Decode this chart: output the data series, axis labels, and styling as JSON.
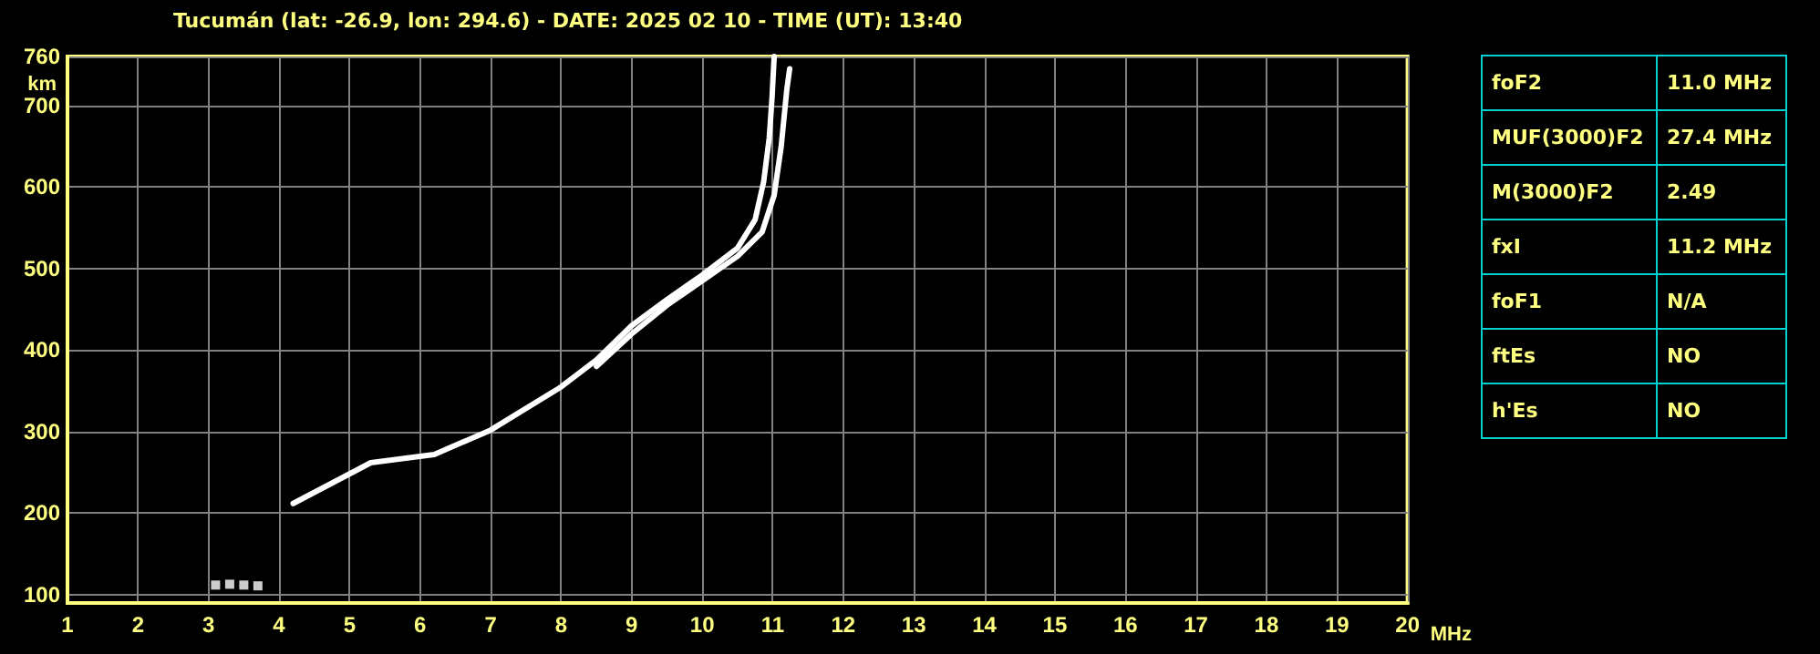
{
  "chart_data": [
    {
      "type": "line",
      "title": "Tucumán (lat: -26.9, lon: 294.6) - DATE: 2025 02 10 - TIME (UT): 13:40",
      "xlabel": "MHz",
      "ylabel": "km",
      "xlim": [
        1,
        20
      ],
      "xticks": [
        1,
        2,
        3,
        4,
        5,
        6,
        7,
        8,
        9,
        10,
        11,
        12,
        13,
        14,
        15,
        16,
        17,
        18,
        19,
        20
      ],
      "ylim": [
        90,
        760
      ],
      "yticks": [
        100,
        200,
        300,
        400,
        500,
        600,
        700,
        760
      ],
      "grid": true,
      "line_style": "solid",
      "series": [
        {
          "color": "#ffffff",
          "x": [
            4.2,
            5.3,
            6.2,
            7.0,
            8.0,
            8.5,
            9.0,
            9.5,
            10.0,
            10.5,
            10.75,
            10.87,
            10.95,
            10.99,
            11.02
          ],
          "values": [
            212,
            262,
            272,
            302,
            355,
            388,
            430,
            462,
            492,
            525,
            560,
            606,
            660,
            710,
            760
          ]
        },
        {
          "color": "#ffffff",
          "x": [
            8.5,
            9.0,
            9.5,
            10.0,
            10.5,
            10.85,
            11.02,
            11.12,
            11.2,
            11.24
          ],
          "values": [
            380,
            420,
            455,
            485,
            515,
            545,
            590,
            650,
            720,
            745
          ]
        },
        {
          "type": "scatter",
          "marker": "square",
          "color": "#ffffff",
          "x": [
            3.1,
            3.3,
            3.5,
            3.7
          ],
          "values": [
            112,
            113,
            112,
            111
          ]
        }
      ]
    },
    {
      "type": "other",
      "categories": [
        "foF2",
        "MUF(3000)F2",
        "M(3000)F2",
        "fxI",
        "foF1",
        "ftEs",
        "h'Es"
      ],
      "value_labels": [
        "11.0 MHz",
        "27.4 MHz",
        "2.49",
        "11.2 MHz",
        "N/A",
        "NO",
        "NO"
      ]
    }
  ]
}
